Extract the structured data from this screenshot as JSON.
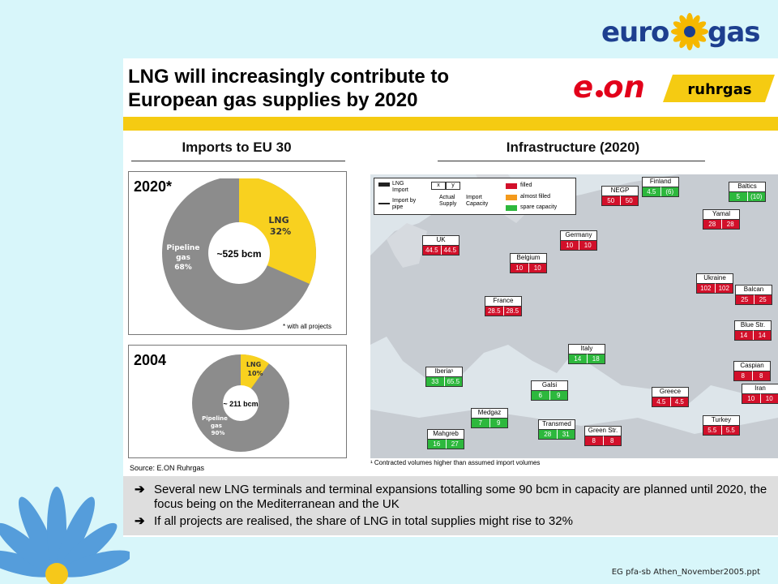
{
  "brand": {
    "logo_word1": "euro",
    "logo_word2": "gas",
    "eon": "e·on",
    "ruhrgas": "ruhrgas"
  },
  "slide": {
    "title_line1": "LNG will increasingly contribute to",
    "title_line2": "European gas supplies by 2020"
  },
  "imports": {
    "heading": "Imports to EU 30",
    "chart2020": {
      "year": "2020*",
      "center": "~525 bcm",
      "lng_label": "LNG",
      "lng_pct": "32%",
      "pipe_label1": "Pipeline",
      "pipe_label2": "gas",
      "pipe_pct": "68%",
      "note": "* with all projects"
    },
    "chart2004": {
      "year": "2004",
      "center": "~ 211 bcm",
      "lng_label": "LNG",
      "lng_pct": "10%",
      "pipe_label1": "Pipeline",
      "pipe_label2": "gas",
      "pipe_pct": "90%"
    },
    "source": "Source: E.ON Ruhrgas"
  },
  "infra": {
    "heading": "Infrastructure (2020)",
    "legend": {
      "lng_import": "LNG Import",
      "pipe_import": "Import by pipe",
      "x": "x",
      "y": "y",
      "actual": "Actual Supply",
      "capacity": "Import Capacity",
      "filled": "filled",
      "almost": "almost filled",
      "spare": "spare capacity"
    },
    "routes": [
      {
        "name": "NEGP",
        "x": "50",
        "y": "50",
        "cx": "red",
        "cy": "red"
      },
      {
        "name": "Finland",
        "x": "4.5",
        "y": "(6)",
        "cx": "green",
        "cy": "green"
      },
      {
        "name": "Baltics",
        "x": "5",
        "y": "(10)",
        "cx": "green",
        "cy": "green"
      },
      {
        "name": "Yamal",
        "x": "28",
        "y": "28",
        "cx": "red",
        "cy": "red"
      },
      {
        "name": "Germany",
        "x": "10",
        "y": "10",
        "cx": "red",
        "cy": "red"
      },
      {
        "name": "UK",
        "x": "44.5",
        "y": "44.5",
        "cx": "red",
        "cy": "red"
      },
      {
        "name": "Belgium",
        "x": "10",
        "y": "10",
        "cx": "red",
        "cy": "red"
      },
      {
        "name": "Ukraine",
        "x": "102",
        "y": "102",
        "cx": "red",
        "cy": "red"
      },
      {
        "name": "Balcan",
        "x": "25",
        "y": "25",
        "cx": "red",
        "cy": "red"
      },
      {
        "name": "France",
        "x": "28.5",
        "y": "28.5",
        "cx": "red",
        "cy": "red"
      },
      {
        "name": "Blue Str.",
        "x": "14",
        "y": "14",
        "cx": "red",
        "cy": "red"
      },
      {
        "name": "Italy",
        "x": "14",
        "y": "18",
        "cx": "green",
        "cy": "green"
      },
      {
        "name": "Caspian",
        "x": "8",
        "y": "8",
        "cx": "red",
        "cy": "red"
      },
      {
        "name": "Iberia¹",
        "x": "33",
        "y": "65.5",
        "cx": "green",
        "cy": "green"
      },
      {
        "name": "Iran",
        "x": "10",
        "y": "10",
        "cx": "red",
        "cy": "red"
      },
      {
        "name": "Greece",
        "x": "4.5",
        "y": "4.5",
        "cx": "red",
        "cy": "red"
      },
      {
        "name": "Galsi",
        "x": "6",
        "y": "9",
        "cx": "green",
        "cy": "green"
      },
      {
        "name": "Medgaz",
        "x": "7",
        "y": "9",
        "cx": "green",
        "cy": "green"
      },
      {
        "name": "Turkey",
        "x": "5.5",
        "y": "5.5",
        "cx": "red",
        "cy": "red"
      },
      {
        "name": "Transmed",
        "x": "28",
        "y": "31",
        "cx": "green",
        "cy": "green"
      },
      {
        "name": "Green Str.",
        "x": "8",
        "y": "8",
        "cx": "red",
        "cy": "red"
      },
      {
        "name": "Mahgreb",
        "x": "16",
        "y": "27",
        "cx": "green",
        "cy": "green"
      }
    ],
    "footnote": "¹  Contracted volumes higher than assumed import volumes",
    "colors": {
      "red": "#d2102a",
      "green": "#2db83d",
      "orange": "#f49a1c"
    }
  },
  "bullets": [
    "Several new LNG terminals and terminal expansions totalling some 90 bcm in capacity are planned until 2020, the focus being on the Mediterranean and the UK",
    "If all projects are realised, the share of LNG in total supplies might rise to 32%"
  ],
  "footer": "EG pfa-sb Athen_November2005.ppt"
}
